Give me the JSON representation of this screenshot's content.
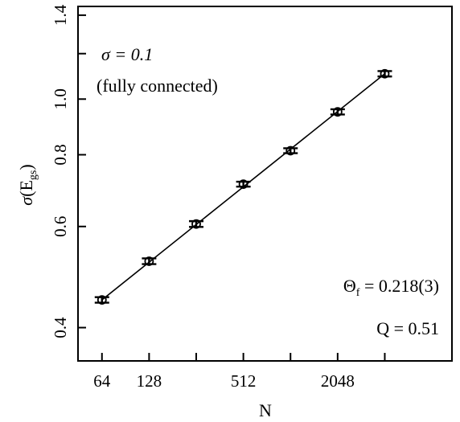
{
  "chart_data": {
    "type": "scatter",
    "x_scale": "log2",
    "y_scale": "log",
    "xlabel": "N",
    "ylabel": "σ(E_gs)",
    "xlim": [
      45,
      11000
    ],
    "ylim": [
      0.35,
      1.45
    ],
    "x_ticks": [
      {
        "value": 64,
        "label": "64"
      },
      {
        "value": 128,
        "label": "128"
      },
      {
        "value": 512,
        "label": "512"
      },
      {
        "value": 2048,
        "label": "2048"
      }
    ],
    "x_minor_ticks": [
      256,
      1024,
      4096
    ],
    "y_ticks": [
      {
        "value": 0.4,
        "label": "0.4"
      },
      {
        "value": 0.6,
        "label": "0.6"
      },
      {
        "value": 0.8,
        "label": "0.8"
      },
      {
        "value": 1.0,
        "label": "1.0"
      },
      {
        "value": 1.4,
        "label": "1.4"
      }
    ],
    "y_minor_ticks": [
      1.2
    ],
    "series": [
      {
        "x": [
          64,
          128,
          256,
          512,
          1024,
          2048,
          4096
        ],
        "y": [
          0.447,
          0.522,
          0.606,
          0.711,
          0.813,
          0.95,
          1.107
        ],
        "err": [
          0.005,
          0.006,
          0.007,
          0.007,
          0.008,
          0.01,
          0.012
        ],
        "marker": "open-circle"
      }
    ],
    "fit_line": {
      "x": [
        64,
        4096
      ],
      "y": [
        0.447,
        1.107
      ]
    },
    "annotations": {
      "sigma": "σ = 0.1",
      "connectivity": "(fully connected)",
      "theta": "Θ_f = 0.218(3)",
      "q": "Q = 0.51"
    }
  }
}
